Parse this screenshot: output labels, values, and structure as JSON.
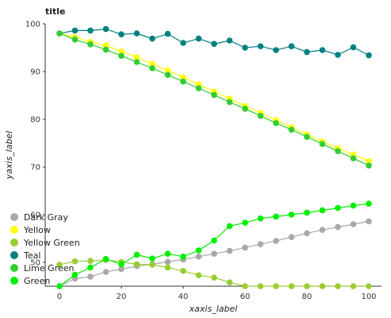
{
  "chart_data": {
    "type": "line",
    "title": "title",
    "xlabel": "xaxis_label",
    "ylabel": "yaxis_label",
    "xlim": [
      0,
      100
    ],
    "ylim": [
      45,
      100
    ],
    "x_ticks": [
      0,
      20,
      40,
      60,
      80,
      100
    ],
    "y_ticks": [
      50,
      60,
      70,
      80,
      90,
      100
    ],
    "grid": false,
    "legend_position": "bottom-left",
    "x": [
      0,
      5,
      10,
      15,
      20,
      25,
      30,
      35,
      40,
      45,
      50,
      55,
      60,
      65,
      70,
      75,
      80,
      85,
      90,
      95,
      100
    ],
    "series": [
      {
        "name": "Dark Gray",
        "color": "#a9a9a9",
        "values": [
          45.0,
          46.6,
          47.0,
          48.0,
          48.6,
          49.2,
          49.6,
          50.1,
          50.6,
          51.2,
          51.8,
          52.4,
          53.1,
          53.8,
          54.5,
          55.3,
          56.1,
          56.8,
          57.4,
          58.0,
          58.6
        ]
      },
      {
        "name": "Yellow",
        "color": "#ffff00",
        "values": [
          98.0,
          97.2,
          96.2,
          95.5,
          94.2,
          93.0,
          91.6,
          90.2,
          88.8,
          87.3,
          85.8,
          84.3,
          82.8,
          81.3,
          79.8,
          78.3,
          76.8,
          75.3,
          73.9,
          72.6,
          71.2
        ]
      },
      {
        "name": "Yellow Green",
        "color": "#9acd32",
        "values": [
          49.5,
          50.2,
          50.3,
          50.5,
          50.1,
          49.6,
          49.5,
          48.9,
          48.2,
          47.3,
          46.8,
          45.8,
          45.0,
          45.0,
          45.0,
          45.0,
          45.0,
          45.0,
          45.0,
          45.0,
          45.0
        ]
      },
      {
        "name": "Teal",
        "color": "#008080",
        "values": [
          98.0,
          98.6,
          98.6,
          98.9,
          97.8,
          98.0,
          96.9,
          97.9,
          96.0,
          96.9,
          95.8,
          96.5,
          95.0,
          95.3,
          94.5,
          95.3,
          94.1,
          94.5,
          93.5,
          95.1,
          93.4
        ]
      },
      {
        "name": "Lime Green",
        "color": "#32cd32",
        "values": [
          98.0,
          96.7,
          95.7,
          94.6,
          93.3,
          92.0,
          90.7,
          89.3,
          87.9,
          86.5,
          85.1,
          83.6,
          82.2,
          80.7,
          79.2,
          77.8,
          76.3,
          74.8,
          73.3,
          71.8,
          70.3
        ]
      },
      {
        "name": "Green",
        "color": "#00ee00",
        "values": [
          45.0,
          47.4,
          48.9,
          50.7,
          49.6,
          51.6,
          50.8,
          51.8,
          51.2,
          52.5,
          54.6,
          57.6,
          58.3,
          59.2,
          59.6,
          60.0,
          60.4,
          60.9,
          61.4,
          61.9,
          62.3
        ]
      }
    ]
  }
}
